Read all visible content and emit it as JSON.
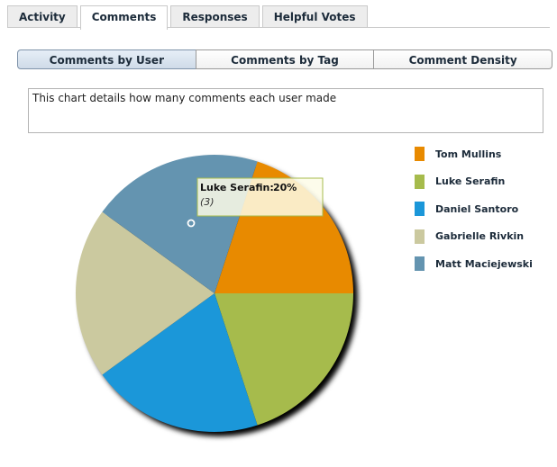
{
  "tabs": [
    {
      "label": "Activity",
      "active": false
    },
    {
      "label": "Comments",
      "active": true
    },
    {
      "label": "Responses",
      "active": false
    },
    {
      "label": "Helpful Votes",
      "active": false
    }
  ],
  "subtabs": [
    {
      "label": "Comments by User",
      "active": true
    },
    {
      "label": "Comments by Tag",
      "active": false
    },
    {
      "label": "Comment Density",
      "active": false
    }
  ],
  "description": "This chart details how many comments each user made",
  "tooltip": {
    "name": "Luke Serafin:",
    "percent": "20%",
    "count": "(3)"
  },
  "chart_data": {
    "type": "pie",
    "title": "",
    "categories": [
      "Tom Mullins",
      "Luke Serafin",
      "Daniel Santoro",
      "Gabrielle Rivkin",
      "Matt Maciejewski"
    ],
    "values": [
      3,
      3,
      3,
      3,
      3
    ],
    "percentages": [
      20,
      20,
      20,
      20,
      20
    ],
    "colors": [
      "#e88a00",
      "#a6bb4c",
      "#1b97d9",
      "#cbc99f",
      "#6494b0"
    ],
    "legend_position": "right"
  }
}
